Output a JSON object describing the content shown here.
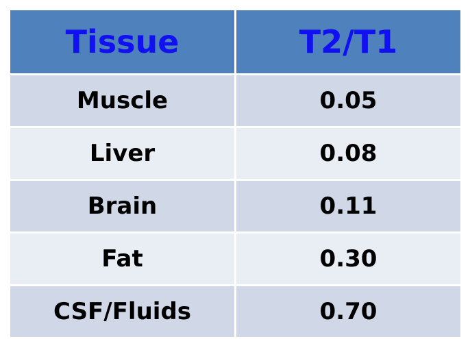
{
  "chart_data": {
    "type": "table",
    "columns": [
      "Tissue",
      "T2/T1"
    ],
    "rows": [
      [
        "Muscle",
        "0.05"
      ],
      [
        "Liver",
        "0.08"
      ],
      [
        "Brain",
        "0.11"
      ],
      [
        "Fat",
        "0.30"
      ],
      [
        "CSF/Fluids",
        "0.70"
      ]
    ]
  },
  "colors": {
    "header_background": "#4f81bd",
    "header_text": "#1010f0",
    "row_odd": "#d0d8e8",
    "row_even": "#e9edf4"
  }
}
